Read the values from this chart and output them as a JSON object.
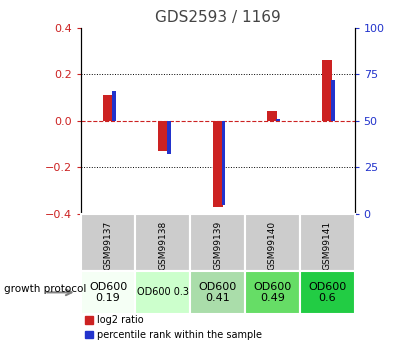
{
  "title": "GDS2593 / 1169",
  "samples": [
    "GSM99137",
    "GSM99138",
    "GSM99139",
    "GSM99140",
    "GSM99141"
  ],
  "log2_ratio": [
    0.11,
    -0.13,
    -0.37,
    0.04,
    0.26
  ],
  "percentile_rank_pct": [
    66,
    32,
    5,
    51,
    72
  ],
  "ylim": [
    -0.4,
    0.4
  ],
  "y2lim": [
    0,
    100
  ],
  "yticks": [
    -0.4,
    -0.2,
    0.0,
    0.2,
    0.4
  ],
  "y2ticks": [
    0,
    25,
    50,
    75,
    100
  ],
  "red_bar_width": 0.18,
  "blue_bar_width": 0.07,
  "bar_color_red": "#cc2222",
  "bar_color_blue": "#2233cc",
  "zero_line_color": "#cc2222",
  "growth_protocol_label": "growth protocol",
  "protocol_values": [
    "OD600\n0.19",
    "OD600 0.3",
    "OD600\n0.41",
    "OD600\n0.49",
    "OD600\n0.6"
  ],
  "protocol_bg": [
    "#f5fff5",
    "#ccffcc",
    "#aaddaa",
    "#66dd66",
    "#22cc44"
  ],
  "protocol_font_sizes": [
    8,
    7,
    8,
    8,
    8
  ],
  "sample_bg": "#cccccc",
  "title_color": "#444444",
  "left_ytick_color": "#cc2222",
  "right_ytick_color": "#2233cc"
}
